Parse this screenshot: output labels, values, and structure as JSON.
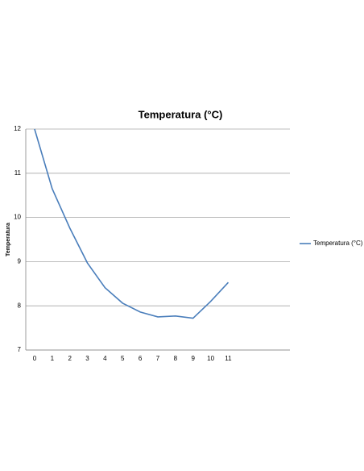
{
  "chart_data": {
    "type": "line",
    "title": "Temperatura (°C)",
    "y_label": "Temperatura",
    "categories": [
      "0",
      "1",
      "2",
      "3",
      "4",
      "5",
      "6",
      "7",
      "8",
      "9",
      "10",
      "11",
      null,
      null,
      null
    ],
    "series": [
      {
        "name": "Temperatura (°C)",
        "color": "#4a7ebb",
        "values": [
          12,
          10.65,
          9.76,
          8.97,
          8.41,
          8.06,
          7.86,
          7.75,
          7.77,
          7.72,
          8.1,
          8.53,
          null,
          null,
          null
        ]
      }
    ],
    "ylim": [
      7,
      12
    ],
    "yticks": [
      7,
      8,
      9,
      10,
      11,
      12
    ],
    "grid": true,
    "legend": "right"
  }
}
